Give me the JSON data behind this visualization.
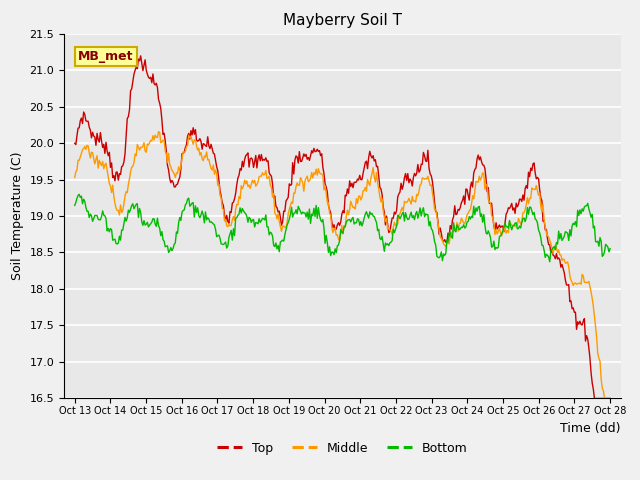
{
  "title": "Mayberry Soil T",
  "xlabel": "Time (dd)",
  "ylabel": "Soil Temperature (C)",
  "ylim": [
    16.5,
    21.5
  ],
  "xlim_lo": 12.7,
  "xlim_hi": 28.3,
  "yticks": [
    16.5,
    17.0,
    17.5,
    18.0,
    18.5,
    19.0,
    19.5,
    20.0,
    20.5,
    21.0,
    21.5
  ],
  "xtick_positions": [
    13,
    14,
    15,
    16,
    17,
    18,
    19,
    20,
    21,
    22,
    23,
    24,
    25,
    26,
    27,
    28
  ],
  "xtick_labels": [
    "Oct 13",
    "Oct 14",
    "Oct 15",
    "Oct 16",
    "Oct 17",
    "Oct 18",
    "Oct 19",
    "Oct 20",
    "Oct 21",
    "Oct 22",
    "Oct 23",
    "Oct 24",
    "Oct 25",
    "Oct 26",
    "Oct 27",
    "Oct 28"
  ],
  "top_color": "#cc0000",
  "middle_color": "#ff9900",
  "bottom_color": "#00bb00",
  "plot_bg": "#e8e8e8",
  "fig_bg": "#f0f0f0",
  "grid_color": "#ffffff",
  "annot_text": "MB_met",
  "annot_fg": "#880000",
  "annot_bg": "#ffff99",
  "annot_edge": "#ccaa00",
  "legend_labels": [
    "Top",
    "Middle",
    "Bottom"
  ],
  "lw": 1.0
}
